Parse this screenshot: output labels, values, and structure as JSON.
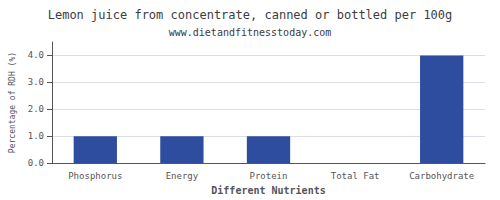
{
  "chart_data": {
    "type": "bar",
    "title": "Lemon juice from concentrate, canned or bottled per 100g",
    "subtitle": "www.dietandfitnesstoday.com",
    "xlabel": "Different Nutrients",
    "ylabel": "Percentage of RDH (%)",
    "categories": [
      "Phosphorus",
      "Energy",
      "Protein",
      "Total Fat",
      "Carbohydrate"
    ],
    "values": [
      1.0,
      1.0,
      1.0,
      0.0,
      4.0
    ],
    "color": "#2e4d9e",
    "ylim": [
      0,
      4.5
    ],
    "yticks": [
      {
        "value": 0.0,
        "label": "0.0"
      },
      {
        "value": 1.0,
        "label": "1.0"
      },
      {
        "value": 2.0,
        "label": "2.0"
      },
      {
        "value": 3.0,
        "label": "3.0"
      },
      {
        "value": 4.0,
        "label": "4.0"
      }
    ],
    "grid": true
  }
}
